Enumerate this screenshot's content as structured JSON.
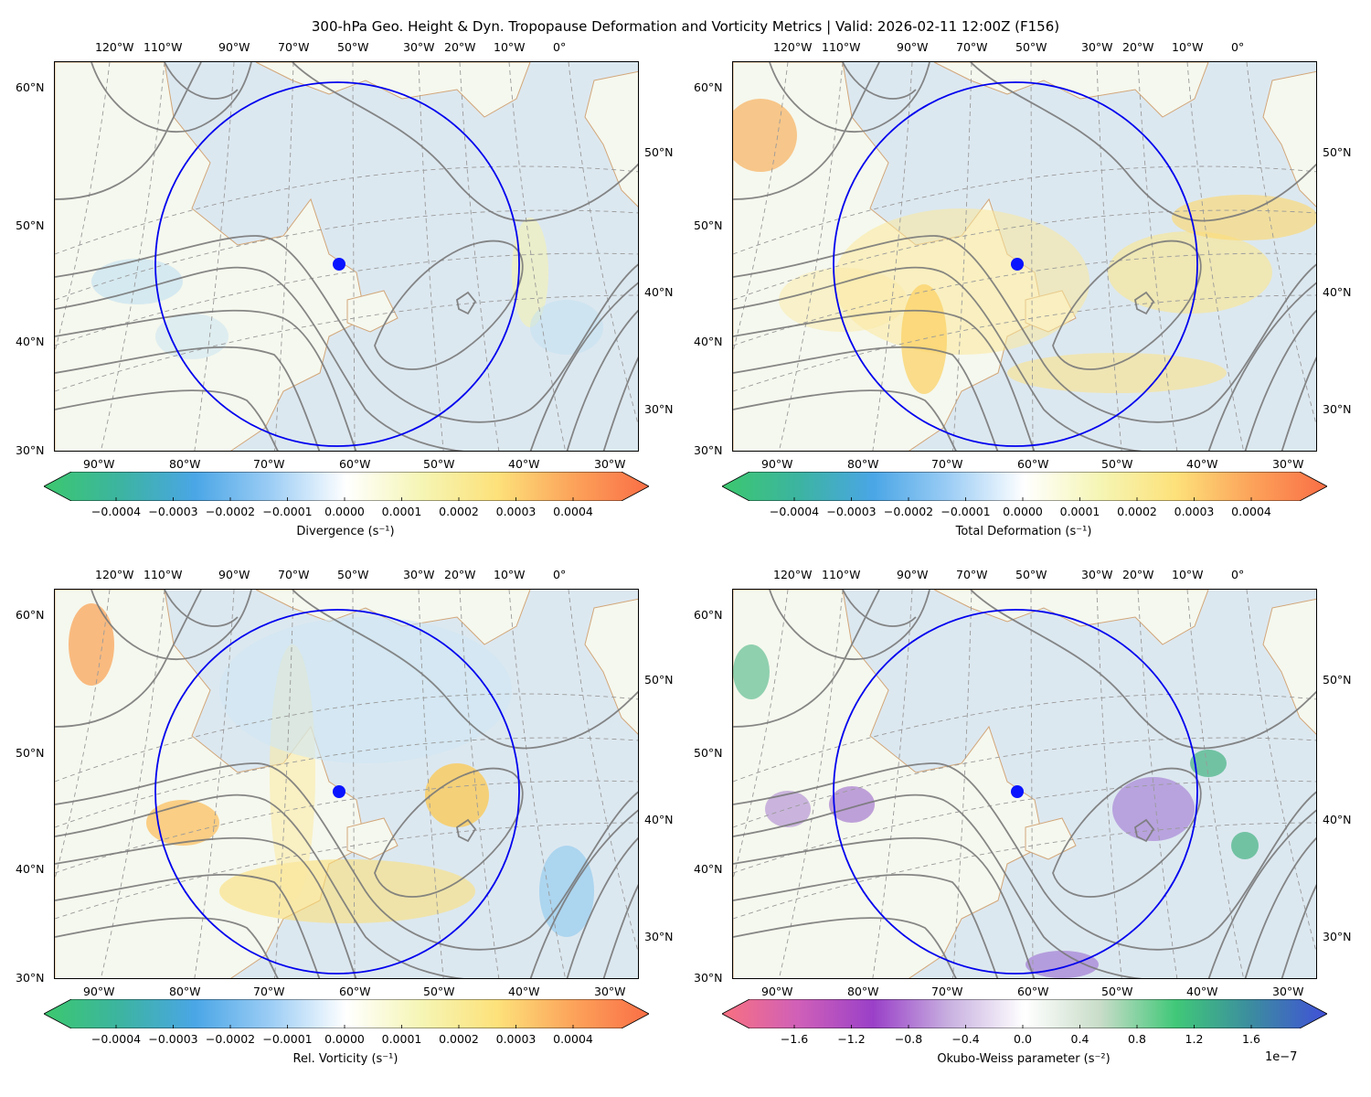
{
  "title": "300-hPa Geo. Height & Dyn. Tropopause Deformation and Vorticity Metrics |  Valid: 2026-02-11 12:00Z (F156)",
  "colors": {
    "circle": "#0000ee",
    "point": "#0a14ff",
    "contour": "#7a7a7a",
    "coast": "#d2a679",
    "water": "#dce8f0",
    "land": "#f5f8ee"
  },
  "top_lon_labels": [
    "120°W",
    "110°W",
    "90°W",
    "70°W",
    "50°W",
    "30°W",
    "20°W",
    "10°W",
    "0°"
  ],
  "bottom_lon_labels": [
    "90°W",
    "80°W",
    "70°W",
    "60°W",
    "50°W",
    "40°W",
    "30°W"
  ],
  "left_lat_labels": [
    "60°N",
    "50°N",
    "40°N",
    "30°N"
  ],
  "right_lat_labels": [
    "50°N",
    "40°N",
    "30°N"
  ],
  "panels": [
    {
      "name": "divergence",
      "colorbar_label": "Divergence (s⁻¹)",
      "ticks": [
        "−0.0004",
        "−0.0003",
        "−0.0002",
        "−0.0001",
        "0.0000",
        "0.0001",
        "0.0002",
        "0.0003",
        "0.0004"
      ],
      "colormap": [
        "#3cc86e",
        "#3cb4a0",
        "#4aa6e6",
        "#9ccdf5",
        "#ffffff",
        "#f5f5b4",
        "#fde17a",
        "#fca35a",
        "#fa6e46"
      ],
      "exponent": ""
    },
    {
      "name": "total-deformation",
      "colorbar_label": "Total Deformation (s⁻¹)",
      "ticks": [
        "−0.0004",
        "−0.0003",
        "−0.0002",
        "−0.0001",
        "0.0000",
        "0.0001",
        "0.0002",
        "0.0003",
        "0.0004"
      ],
      "colormap": [
        "#3cc86e",
        "#3cb4a0",
        "#4aa6e6",
        "#9ccdf5",
        "#ffffff",
        "#f5f5b4",
        "#fde17a",
        "#fca35a",
        "#fa6e46"
      ],
      "exponent": ""
    },
    {
      "name": "relative-vorticity",
      "colorbar_label": "Rel. Vorticity (s⁻¹)",
      "ticks": [
        "−0.0004",
        "−0.0003",
        "−0.0002",
        "−0.0001",
        "0.0000",
        "0.0001",
        "0.0002",
        "0.0003",
        "0.0004"
      ],
      "colormap": [
        "#3cc86e",
        "#3cb4a0",
        "#4aa6e6",
        "#9ccdf5",
        "#ffffff",
        "#f5f5b4",
        "#fde17a",
        "#fca35a",
        "#fa6e46"
      ],
      "exponent": ""
    },
    {
      "name": "okubo-weiss",
      "colorbar_label": "Okubo-Weiss parameter (s⁻²)",
      "ticks": [
        "−1.6",
        "−1.2",
        "−0.8",
        "−0.4",
        "0.0",
        "0.4",
        "0.8",
        "1.2",
        "1.6"
      ],
      "colormap": [
        "#f87080",
        "#d060b8",
        "#9a40c8",
        "#c8b0e0",
        "#ffffff",
        "#c8dcc8",
        "#40c878",
        "#3c8ca0",
        "#4050d8"
      ],
      "exponent": "1e−7"
    }
  ]
}
